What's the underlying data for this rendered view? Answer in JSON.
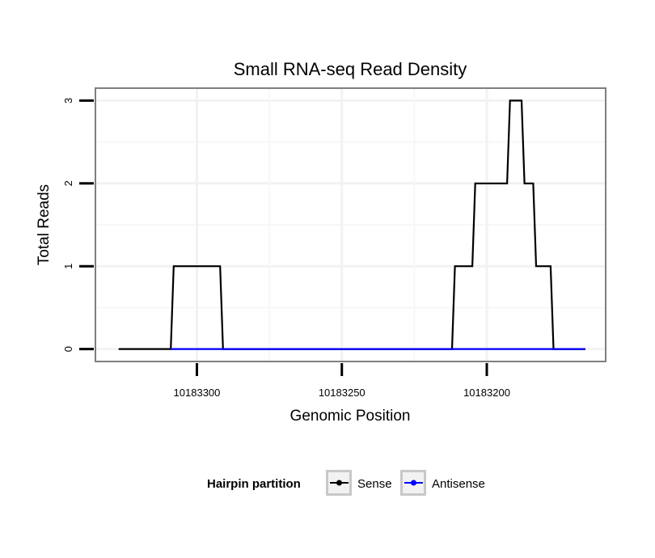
{
  "chart_data": {
    "type": "line",
    "title": "Small RNA-seq Read Density",
    "xlabel": "Genomic Position",
    "ylabel": "Total Reads",
    "xlim": [
      10183335,
      10183159
    ],
    "ylim": [
      -0.15,
      3.15
    ],
    "x_reversed": true,
    "xticks": [
      10183300,
      10183250,
      10183200
    ],
    "xtick_labels": [
      "10183300",
      "10183250",
      "10183200"
    ],
    "yticks": [
      0,
      1,
      2,
      3
    ],
    "ytick_labels": [
      "0",
      "1",
      "2",
      "3"
    ],
    "grid": true,
    "legend_position": "bottom",
    "legend_title": "Hairpin partition",
    "series": [
      {
        "name": "Sense",
        "color": "#000000",
        "x": [
          10183327,
          10183309,
          10183308,
          10183292,
          10183291,
          10183212,
          10183211,
          10183205,
          10183204,
          10183193,
          10183192,
          10183188,
          10183187,
          10183184,
          10183183,
          10183178,
          10183177,
          10183171,
          10183170,
          10183166
        ],
        "y": [
          0,
          0,
          1,
          1,
          0,
          0,
          1,
          1,
          2,
          2,
          3,
          3,
          2,
          2,
          1,
          1,
          0,
          0,
          0,
          0
        ]
      },
      {
        "name": "Antisense",
        "color": "#0000ff",
        "x": [
          10183309,
          10183291,
          10183212,
          10183166
        ],
        "y": [
          0,
          0,
          0,
          0
        ]
      }
    ]
  }
}
